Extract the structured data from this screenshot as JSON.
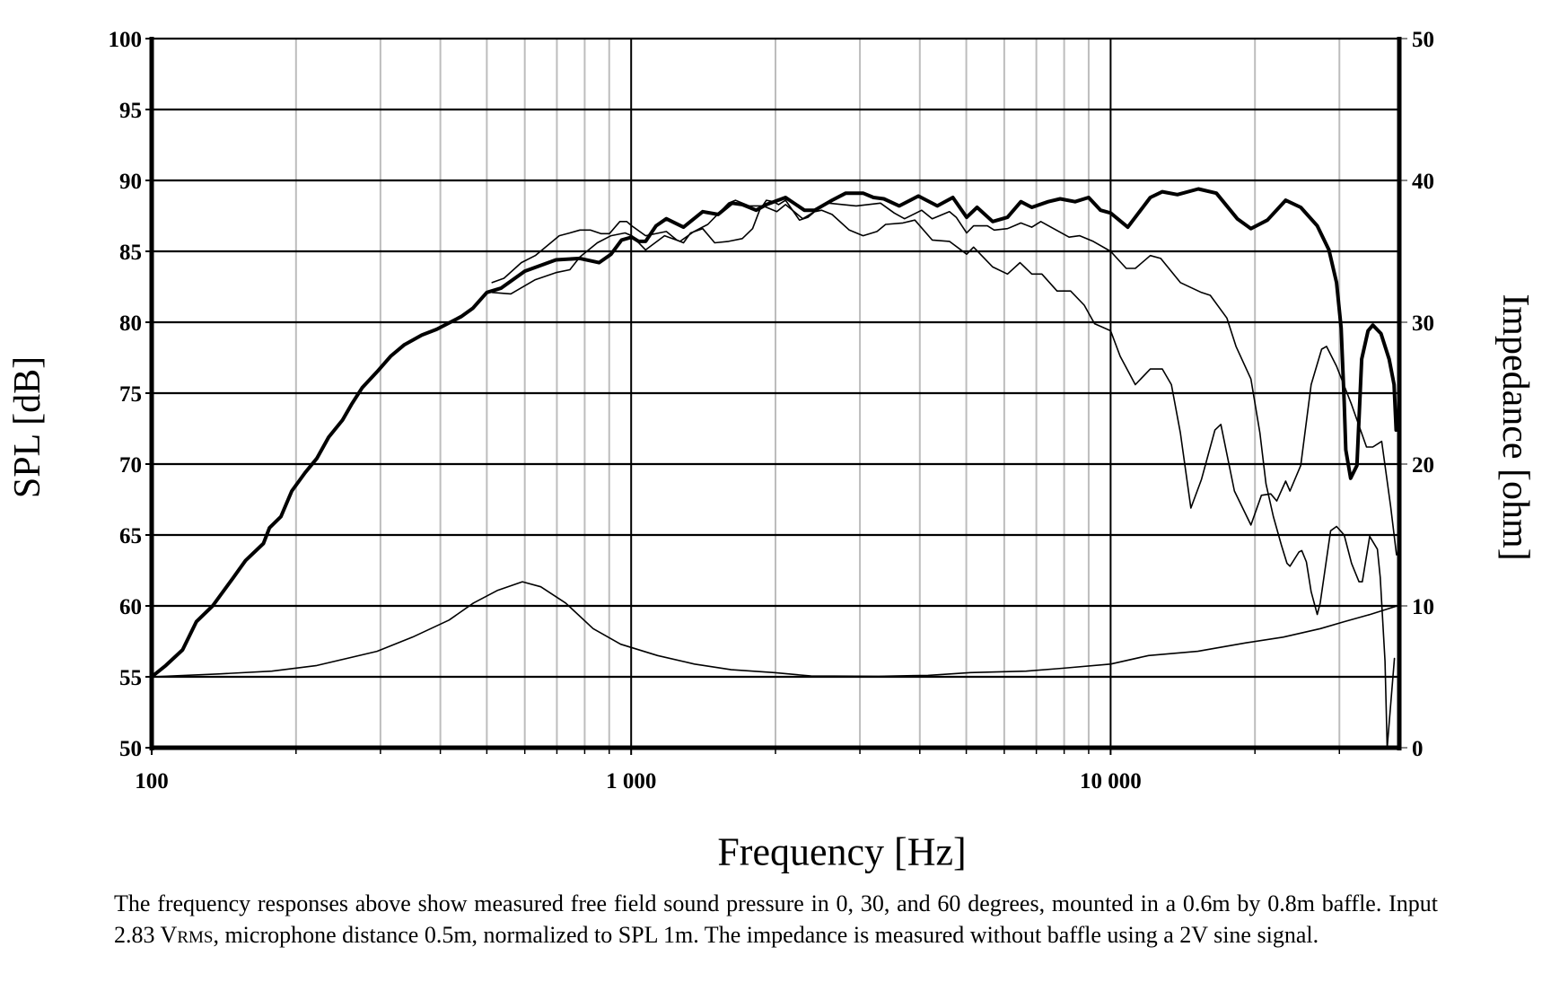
{
  "chart_data": {
    "type": "line",
    "x_scale": "log",
    "xlim": [
      100,
      40000
    ],
    "ylim": [
      50,
      100
    ],
    "y2lim": [
      0,
      50
    ],
    "xlabel": "Frequency [Hz]",
    "ylabel": "SPL [dB]",
    "y2label": "Impedance [ohm]",
    "grid": true,
    "x_ticks": [
      {
        "value": 100,
        "label": "100"
      },
      {
        "value": 1000,
        "label": "1 000"
      },
      {
        "value": 10000,
        "label": "10 000"
      }
    ],
    "x_minor_gridlines": [
      200,
      300,
      400,
      500,
      600,
      700,
      800,
      900,
      2000,
      3000,
      4000,
      5000,
      6000,
      7000,
      8000,
      9000,
      20000,
      30000
    ],
    "y_ticks": [
      {
        "value": 50,
        "label": "50"
      },
      {
        "value": 55,
        "label": "55"
      },
      {
        "value": 60,
        "label": "60"
      },
      {
        "value": 65,
        "label": "65"
      },
      {
        "value": 70,
        "label": "70"
      },
      {
        "value": 75,
        "label": "75"
      },
      {
        "value": 80,
        "label": "80"
      },
      {
        "value": 85,
        "label": "85"
      },
      {
        "value": 90,
        "label": "90"
      },
      {
        "value": 95,
        "label": "95"
      },
      {
        "value": 100,
        "label": "100"
      }
    ],
    "y2_ticks": [
      {
        "value": 0,
        "label": "0"
      },
      {
        "value": 10,
        "label": "10"
      },
      {
        "value": 20,
        "label": "20"
      },
      {
        "value": 30,
        "label": "30"
      },
      {
        "value": 40,
        "label": "40"
      },
      {
        "value": 50,
        "label": "50"
      }
    ],
    "series": [
      {
        "angle": 0,
        "axis": "y",
        "weight": "heavy",
        "points": [
          [
            100,
            55
          ],
          [
            107,
            55.8
          ],
          [
            116,
            56.9
          ],
          [
            124,
            58.9
          ],
          [
            134,
            60
          ],
          [
            148,
            62
          ],
          [
            157,
            63.2
          ],
          [
            171,
            64.4
          ],
          [
            176,
            65.5
          ],
          [
            186,
            66.3
          ],
          [
            196,
            68.1
          ],
          [
            209,
            69.4
          ],
          [
            221,
            70.4
          ],
          [
            234,
            71.9
          ],
          [
            250,
            73.1
          ],
          [
            261,
            74.2
          ],
          [
            275,
            75.4
          ],
          [
            295,
            76.5
          ],
          [
            315,
            77.6
          ],
          [
            336,
            78.4
          ],
          [
            366,
            79.1
          ],
          [
            393,
            79.5
          ],
          [
            442,
            80.4
          ],
          [
            468,
            81
          ],
          [
            500,
            82.1
          ],
          [
            535,
            82.4
          ],
          [
            600,
            83.6
          ],
          [
            697,
            84.4
          ],
          [
            782,
            84.5
          ],
          [
            857,
            84.2
          ],
          [
            908,
            84.8
          ],
          [
            955,
            85.8
          ],
          [
            1003,
            86
          ],
          [
            1037,
            85.7
          ],
          [
            1072,
            85.7
          ],
          [
            1127,
            86.8
          ],
          [
            1184,
            87.3
          ],
          [
            1286,
            86.7
          ],
          [
            1410,
            87.8
          ],
          [
            1518,
            87.6
          ],
          [
            1622,
            88.4
          ],
          [
            1705,
            88.3
          ],
          [
            1822,
            87.9
          ],
          [
            1915,
            88.3
          ],
          [
            2099,
            88.8
          ],
          [
            2298,
            87.9
          ],
          [
            2415,
            87.9
          ],
          [
            2624,
            88.6
          ],
          [
            2803,
            89.1
          ],
          [
            3046,
            89.1
          ],
          [
            3202,
            88.8
          ],
          [
            3365,
            88.7
          ],
          [
            3624,
            88.2
          ],
          [
            3972,
            88.9
          ],
          [
            4351,
            88.2
          ],
          [
            4688,
            88.8
          ],
          [
            5010,
            87.4
          ],
          [
            5266,
            88.1
          ],
          [
            5675,
            87.1
          ],
          [
            6095,
            87.4
          ],
          [
            6500,
            88.5
          ],
          [
            6850,
            88.1
          ],
          [
            7410,
            88.5
          ],
          [
            7850,
            88.7
          ],
          [
            8430,
            88.5
          ],
          [
            9000,
            88.8
          ],
          [
            9530,
            87.9
          ],
          [
            10000,
            87.7
          ],
          [
            10860,
            86.7
          ],
          [
            12100,
            88.8
          ],
          [
            12820,
            89.2
          ],
          [
            13780,
            89.0
          ],
          [
            15240,
            89.4
          ],
          [
            16620,
            89.1
          ],
          [
            18370,
            87.3
          ],
          [
            19620,
            86.6
          ],
          [
            21240,
            87.2
          ],
          [
            23180,
            88.6
          ],
          [
            24920,
            88.1
          ],
          [
            26970,
            86.8
          ],
          [
            28530,
            85.1
          ],
          [
            29590,
            82.8
          ],
          [
            30250,
            79.6
          ],
          [
            30700,
            74.4
          ],
          [
            30940,
            71.0
          ],
          [
            31660,
            69.0
          ],
          [
            32630,
            69.9
          ],
          [
            33390,
            77.4
          ],
          [
            34430,
            79.4
          ],
          [
            35230,
            79.8
          ],
          [
            36630,
            79.2
          ],
          [
            38100,
            77.4
          ],
          [
            39010,
            75.6
          ],
          [
            39400,
            72.4
          ]
        ]
      },
      {
        "angle": 30,
        "axis": "y",
        "weight": "thin",
        "points": [
          [
            513,
            82.1
          ],
          [
            561,
            82.0
          ],
          [
            631,
            83.0
          ],
          [
            697,
            83.5
          ],
          [
            745,
            83.7
          ],
          [
            782,
            84.6
          ],
          [
            850,
            85.6
          ],
          [
            908,
            86.1
          ],
          [
            971,
            86.3
          ],
          [
            1003,
            86.1
          ],
          [
            1072,
            85.1
          ],
          [
            1174,
            86.1
          ],
          [
            1265,
            85.7
          ],
          [
            1352,
            86.4
          ],
          [
            1445,
            86.9
          ],
          [
            1596,
            88.4
          ],
          [
            1650,
            88.6
          ],
          [
            1763,
            88.2
          ],
          [
            1884,
            88.2
          ],
          [
            2013,
            87.8
          ],
          [
            2099,
            88.3
          ],
          [
            2280,
            87.3
          ],
          [
            2580,
            88.4
          ],
          [
            2946,
            88.2
          ],
          [
            3311,
            88.4
          ],
          [
            3538,
            87.7
          ],
          [
            3717,
            87.3
          ],
          [
            4037,
            87.9
          ],
          [
            4245,
            87.3
          ],
          [
            4612,
            87.8
          ],
          [
            4765,
            87.4
          ],
          [
            5010,
            86.3
          ],
          [
            5178,
            86.8
          ],
          [
            5534,
            86.8
          ],
          [
            5718,
            86.5
          ],
          [
            6095,
            86.6
          ],
          [
            6500,
            87.0
          ],
          [
            6850,
            86.7
          ],
          [
            7150,
            87.1
          ],
          [
            8190,
            86.0
          ],
          [
            8620,
            86.1
          ],
          [
            9200,
            85.7
          ],
          [
            10000,
            85.0
          ],
          [
            10780,
            83.8
          ],
          [
            11260,
            83.8
          ],
          [
            12100,
            84.7
          ],
          [
            12720,
            84.5
          ],
          [
            13980,
            82.8
          ],
          [
            15460,
            82.1
          ],
          [
            16140,
            81.9
          ],
          [
            17480,
            80.3
          ],
          [
            18260,
            78.3
          ],
          [
            19620,
            76.0
          ],
          [
            20480,
            72.2
          ],
          [
            21090,
            68.6
          ],
          [
            21850,
            66.3
          ],
          [
            22700,
            64.3
          ],
          [
            23330,
            63.0
          ],
          [
            23660,
            62.8
          ],
          [
            24700,
            63.8
          ],
          [
            25050,
            63.9
          ],
          [
            25600,
            63.1
          ],
          [
            26200,
            61.0
          ],
          [
            26970,
            59.4
          ],
          [
            27360,
            60.2
          ],
          [
            28770,
            65.3
          ],
          [
            29590,
            65.6
          ],
          [
            30700,
            65.0
          ],
          [
            31800,
            63.0
          ],
          [
            32960,
            61.7
          ],
          [
            33490,
            61.7
          ],
          [
            34700,
            64.9
          ],
          [
            36010,
            64.0
          ],
          [
            36500,
            62.0
          ],
          [
            37350,
            56.1
          ],
          [
            37740,
            50
          ],
          [
            39080,
            56.3
          ]
        ]
      },
      {
        "angle": 60,
        "axis": "y",
        "weight": "thin",
        "points": [
          [
            513,
            82.8
          ],
          [
            543,
            83.1
          ],
          [
            590,
            84.2
          ],
          [
            631,
            84.7
          ],
          [
            708,
            86.1
          ],
          [
            745,
            86.3
          ],
          [
            782,
            86.5
          ],
          [
            822,
            86.5
          ],
          [
            865,
            86.25
          ],
          [
            901,
            86.25
          ],
          [
            947,
            87.1
          ],
          [
            979,
            87.1
          ],
          [
            1003,
            86.8
          ],
          [
            1072,
            86.1
          ],
          [
            1184,
            86.4
          ],
          [
            1245,
            85.8
          ],
          [
            1286,
            85.6
          ],
          [
            1330,
            86.3
          ],
          [
            1410,
            86.6
          ],
          [
            1494,
            85.6
          ],
          [
            1596,
            85.7
          ],
          [
            1705,
            85.9
          ],
          [
            1792,
            86.6
          ],
          [
            1853,
            87.9
          ],
          [
            1915,
            88.6
          ],
          [
            1980,
            88.5
          ],
          [
            2030,
            88.3
          ],
          [
            2099,
            88.6
          ],
          [
            2244,
            87.2
          ],
          [
            2337,
            87.4
          ],
          [
            2415,
            87.8
          ],
          [
            2497,
            87.9
          ],
          [
            2624,
            87.6
          ],
          [
            2851,
            86.5
          ],
          [
            3046,
            86.1
          ],
          [
            3256,
            86.4
          ],
          [
            3394,
            86.9
          ],
          [
            3687,
            87.0
          ],
          [
            3906,
            87.2
          ],
          [
            4245,
            85.8
          ],
          [
            4612,
            85.7
          ],
          [
            5010,
            84.8
          ],
          [
            5178,
            85.3
          ],
          [
            5675,
            83.9
          ],
          [
            6095,
            83.4
          ],
          [
            6470,
            84.2
          ],
          [
            6850,
            83.4
          ],
          [
            7190,
            83.4
          ],
          [
            7730,
            82.2
          ],
          [
            8250,
            82.2
          ],
          [
            8810,
            81.2
          ],
          [
            9260,
            79.9
          ],
          [
            10000,
            79.4
          ],
          [
            10470,
            77.6
          ],
          [
            11260,
            75.6
          ],
          [
            12100,
            76.7
          ],
          [
            12820,
            76.7
          ],
          [
            13390,
            75.6
          ],
          [
            13980,
            72.2
          ],
          [
            14700,
            66.9
          ],
          [
            15460,
            68.9
          ],
          [
            16500,
            72.4
          ],
          [
            16980,
            72.8
          ],
          [
            18120,
            68.1
          ],
          [
            19620,
            65.7
          ],
          [
            20630,
            67.8
          ],
          [
            21580,
            67.9
          ],
          [
            22210,
            67.4
          ],
          [
            23180,
            68.8
          ],
          [
            23660,
            68.1
          ],
          [
            24920,
            69.9
          ],
          [
            26200,
            75.6
          ],
          [
            27550,
            78.1
          ],
          [
            28200,
            78.3
          ],
          [
            29590,
            76.9
          ],
          [
            31800,
            74.2
          ],
          [
            34170,
            71.2
          ],
          [
            35230,
            71.2
          ],
          [
            36760,
            71.6
          ],
          [
            38380,
            67.0
          ],
          [
            39470,
            63.6
          ]
        ]
      },
      {
        "angle": null,
        "axis": "y2",
        "weight": "thin",
        "points": [
          [
            100,
            5.0
          ],
          [
            138,
            5.2
          ],
          [
            178,
            5.4
          ],
          [
            221,
            5.8
          ],
          [
            295,
            6.8
          ],
          [
            350,
            7.8
          ],
          [
            417,
            9.0
          ],
          [
            469,
            10.2
          ],
          [
            527,
            11.1
          ],
          [
            593,
            11.7
          ],
          [
            648,
            11.35
          ],
          [
            730,
            10.2
          ],
          [
            833,
            8.4
          ],
          [
            951,
            7.3
          ],
          [
            1135,
            6.5
          ],
          [
            1355,
            5.9
          ],
          [
            1617,
            5.5
          ],
          [
            1987,
            5.3
          ],
          [
            2371,
            5.06
          ],
          [
            3280,
            5.04
          ],
          [
            4160,
            5.1
          ],
          [
            5100,
            5.3
          ],
          [
            6660,
            5.4
          ],
          [
            7930,
            5.6
          ],
          [
            10000,
            5.9
          ],
          [
            12000,
            6.5
          ],
          [
            15200,
            6.8
          ],
          [
            19200,
            7.4
          ],
          [
            22900,
            7.8
          ],
          [
            27400,
            8.4
          ],
          [
            30800,
            8.9
          ],
          [
            34800,
            9.4
          ],
          [
            39600,
            10.0
          ]
        ]
      }
    ]
  },
  "caption": {
    "part1": "The frequency responses above show measured free field sound pressure in 0, 30, and 60 degrees, mounted in a 0.6m by 0.8m baffle. Input 2.83 ",
    "unit_v": "V",
    "unit_rms": "RMS",
    "part2": ", microphone distance 0.5m, normalized to SPL 1m. The impedance is measured without baffle using a 2V sine signal."
  }
}
